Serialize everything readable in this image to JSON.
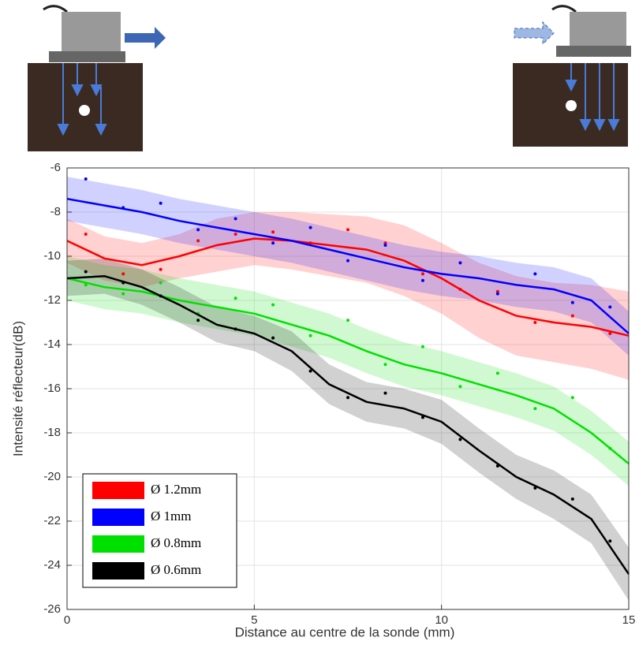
{
  "chart_data": {
    "type": "line",
    "xlabel": "Distance au centre de la sonde (mm)",
    "ylabel": "Intensité réflecteur(dB)",
    "x": [
      0,
      1,
      2,
      3,
      4,
      5,
      6,
      7,
      8,
      9,
      10,
      11,
      12,
      13,
      14,
      15
    ],
    "xlim": [
      0,
      15
    ],
    "xticks": [
      0,
      5,
      10,
      15
    ],
    "ylim": [
      -26,
      -6
    ],
    "yticks": [
      -26,
      -24,
      -22,
      -20,
      -18,
      -16,
      -14,
      -12,
      -10,
      -8,
      -6
    ],
    "grid": true,
    "legend": "lower left",
    "scatter_x": [
      0.5,
      1.5,
      2.5,
      3.5,
      4.5,
      5.5,
      6.5,
      7.5,
      8.5,
      9.5,
      10.5,
      11.5,
      12.5,
      13.5,
      14.5
    ],
    "series": [
      {
        "name": "Ø 1.2mm",
        "color": "#ff0000",
        "values": [
          -9.3,
          -10.1,
          -10.4,
          -10.0,
          -9.5,
          -9.2,
          -9.3,
          -9.5,
          -9.7,
          -10.2,
          -11.0,
          -12.0,
          -12.7,
          -13.0,
          -13.2,
          -13.6
        ],
        "spread": [
          1,
          1,
          1,
          1,
          1.2,
          1.2,
          1.3,
          1.4,
          1.5,
          1.6,
          1.6,
          1.7,
          1.8,
          1.8,
          1.9,
          2
        ],
        "scatter_y": [
          -9.0,
          -10.8,
          -10.6,
          -9.3,
          -9.0,
          -8.9,
          -9.4,
          -8.8,
          -9.4,
          -10.8,
          -11.5,
          -11.6,
          -13.0,
          -12.7,
          -13.5
        ]
      },
      {
        "name": "Ø 1mm",
        "color": "#0000ff",
        "values": [
          -7.4,
          -7.7,
          -8.0,
          -8.4,
          -8.7,
          -9.0,
          -9.3,
          -9.7,
          -10.1,
          -10.5,
          -10.8,
          -11.0,
          -11.3,
          -11.5,
          -12.0,
          -13.5
        ],
        "spread": [
          1,
          1,
          1,
          1,
          1,
          1,
          1,
          1,
          1,
          1,
          1,
          1,
          1,
          1,
          1,
          1
        ],
        "scatter_y": [
          -6.5,
          -7.8,
          -7.6,
          -8.8,
          -8.3,
          -9.4,
          -8.7,
          -10.2,
          -9.5,
          -11.1,
          -10.3,
          -11.7,
          -10.8,
          -12.1,
          -12.3
        ]
      },
      {
        "name": "Ø 0.8mm",
        "color": "#00e000",
        "values": [
          -11.0,
          -11.4,
          -11.6,
          -12.0,
          -12.3,
          -12.6,
          -13.1,
          -13.6,
          -14.3,
          -14.9,
          -15.3,
          -15.8,
          -16.3,
          -16.9,
          -18.0,
          -19.4
        ],
        "spread": [
          1,
          1,
          1,
          1,
          1,
          1,
          1,
          1,
          1,
          1,
          1,
          1,
          1,
          1,
          1,
          1
        ],
        "scatter_y": [
          -11.3,
          -11.7,
          -11.2,
          -12.6,
          -11.9,
          -12.2,
          -13.6,
          -12.9,
          -14.9,
          -14.1,
          -15.9,
          -15.3,
          -16.9,
          -16.4,
          -18.7
        ]
      },
      {
        "name": "Ø 0.6mm",
        "color": "#000000",
        "values": [
          -11.0,
          -10.9,
          -11.4,
          -12.2,
          -13.1,
          -13.5,
          -14.3,
          -15.8,
          -16.6,
          -16.9,
          -17.5,
          -18.8,
          -20.0,
          -20.8,
          -21.9,
          -24.4
        ],
        "spread": [
          0.8,
          0.8,
          0.8,
          0.8,
          0.8,
          0.8,
          0.9,
          0.9,
          0.9,
          0.9,
          1,
          1,
          1,
          1.1,
          1.1,
          1.2
        ],
        "scatter_y": [
          -10.7,
          -11.2,
          -11.8,
          -12.9,
          -13.3,
          -13.7,
          -15.2,
          -16.4,
          -16.2,
          -17.3,
          -18.3,
          -19.5,
          -20.5,
          -21.0,
          -22.9
        ]
      }
    ]
  }
}
